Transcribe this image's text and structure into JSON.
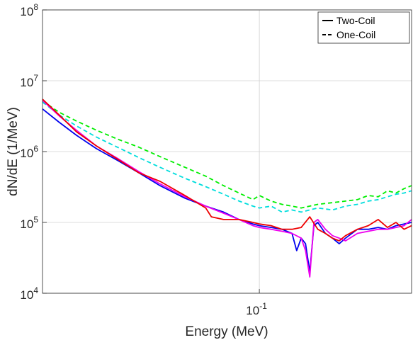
{
  "chart_data": {
    "type": "line",
    "xlabel": "Energy (MeV)",
    "ylabel": "dN/dE (1/MeV)",
    "x_scale": "log",
    "y_scale": "log",
    "xlim": [
      0.0175,
      0.34
    ],
    "ylim": [
      10000,
      100000000
    ],
    "x_ticks": [
      {
        "value": 0.1,
        "label": "10",
        "exp": "-1"
      }
    ],
    "y_ticks": [
      {
        "value": 10000,
        "label": "10",
        "exp": "4"
      },
      {
        "value": 100000,
        "label": "10",
        "exp": "5"
      },
      {
        "value": 1000000,
        "label": "10",
        "exp": "6"
      },
      {
        "value": 10000000,
        "label": "10",
        "exp": "7"
      },
      {
        "value": 100000000,
        "label": "10",
        "exp": "8"
      }
    ],
    "grid": true,
    "legend": {
      "position": "top-right",
      "entries": [
        {
          "label": "Two-Coil",
          "style": "solid"
        },
        {
          "label": "One-Coil",
          "style": "dashed"
        }
      ]
    },
    "series": [
      {
        "color": "#00ee00",
        "style": "dashed",
        "x": [
          0.0175,
          0.02,
          0.023,
          0.027,
          0.032,
          0.038,
          0.045,
          0.055,
          0.065,
          0.075,
          0.085,
          0.095,
          0.1,
          0.11,
          0.12,
          0.13,
          0.14,
          0.15,
          0.16,
          0.18,
          0.2,
          0.22,
          0.24,
          0.26,
          0.28,
          0.3,
          0.32,
          0.34
        ],
        "y": [
          5200000,
          3600000,
          2700000,
          2000000,
          1500000,
          1150000,
          850000,
          600000,
          450000,
          330000,
          260000,
          210000,
          240000,
          200000,
          180000,
          170000,
          160000,
          170000,
          180000,
          190000,
          200000,
          210000,
          240000,
          230000,
          280000,
          260000,
          300000,
          330000
        ]
      },
      {
        "color": "#00dddd",
        "style": "dashed",
        "x": [
          0.0175,
          0.02,
          0.023,
          0.027,
          0.032,
          0.038,
          0.045,
          0.055,
          0.065,
          0.075,
          0.085,
          0.095,
          0.1,
          0.11,
          0.12,
          0.13,
          0.14,
          0.15,
          0.16,
          0.18,
          0.2,
          0.22,
          0.24,
          0.26,
          0.28,
          0.3,
          0.32,
          0.34
        ],
        "y": [
          5000000,
          3300000,
          2300000,
          1600000,
          1150000,
          820000,
          600000,
          420000,
          320000,
          250000,
          200000,
          170000,
          160000,
          170000,
          140000,
          150000,
          140000,
          150000,
          160000,
          150000,
          170000,
          180000,
          200000,
          210000,
          230000,
          250000,
          260000,
          280000
        ]
      },
      {
        "color": "#0000ee",
        "style": "solid",
        "x": [
          0.0175,
          0.02,
          0.023,
          0.027,
          0.032,
          0.038,
          0.045,
          0.055,
          0.065,
          0.075,
          0.085,
          0.095,
          0.1,
          0.11,
          0.12,
          0.13,
          0.135,
          0.14,
          0.145,
          0.15,
          0.155,
          0.16,
          0.17,
          0.18,
          0.19,
          0.2,
          0.22,
          0.24,
          0.26,
          0.28,
          0.3,
          0.32,
          0.34
        ],
        "y": [
          4000000,
          2600000,
          1700000,
          1100000,
          750000,
          500000,
          330000,
          220000,
          170000,
          140000,
          110000,
          95000,
          90000,
          85000,
          80000,
          70000,
          40000,
          60000,
          50000,
          20000,
          90000,
          100000,
          70000,
          60000,
          50000,
          60000,
          80000,
          80000,
          85000,
          80000,
          90000,
          95000,
          100000
        ]
      },
      {
        "color": "#ee00ee",
        "style": "solid",
        "x": [
          0.0175,
          0.02,
          0.023,
          0.027,
          0.032,
          0.038,
          0.045,
          0.055,
          0.065,
          0.075,
          0.085,
          0.095,
          0.1,
          0.11,
          0.12,
          0.13,
          0.14,
          0.145,
          0.15,
          0.155,
          0.16,
          0.17,
          0.18,
          0.19,
          0.2,
          0.22,
          0.24,
          0.26,
          0.28,
          0.3,
          0.32,
          0.34
        ],
        "y": [
          5300000,
          3200000,
          2000000,
          1200000,
          800000,
          520000,
          350000,
          230000,
          170000,
          135000,
          110000,
          90000,
          85000,
          80000,
          75000,
          70000,
          60000,
          40000,
          17000,
          100000,
          110000,
          80000,
          65000,
          60000,
          55000,
          70000,
          75000,
          80000,
          80000,
          85000,
          90000,
          110000
        ]
      },
      {
        "color": "#ee0000",
        "style": "solid",
        "x": [
          0.0175,
          0.02,
          0.023,
          0.027,
          0.032,
          0.038,
          0.045,
          0.055,
          0.065,
          0.068,
          0.075,
          0.085,
          0.095,
          0.1,
          0.11,
          0.12,
          0.13,
          0.14,
          0.15,
          0.16,
          0.17,
          0.18,
          0.19,
          0.2,
          0.22,
          0.24,
          0.26,
          0.28,
          0.3,
          0.32,
          0.34
        ],
        "y": [
          5500000,
          3300000,
          1900000,
          1200000,
          780000,
          500000,
          380000,
          240000,
          160000,
          120000,
          110000,
          110000,
          100000,
          95000,
          90000,
          80000,
          80000,
          85000,
          120000,
          80000,
          70000,
          60000,
          55000,
          65000,
          80000,
          90000,
          110000,
          85000,
          100000,
          80000,
          90000
        ]
      }
    ]
  }
}
